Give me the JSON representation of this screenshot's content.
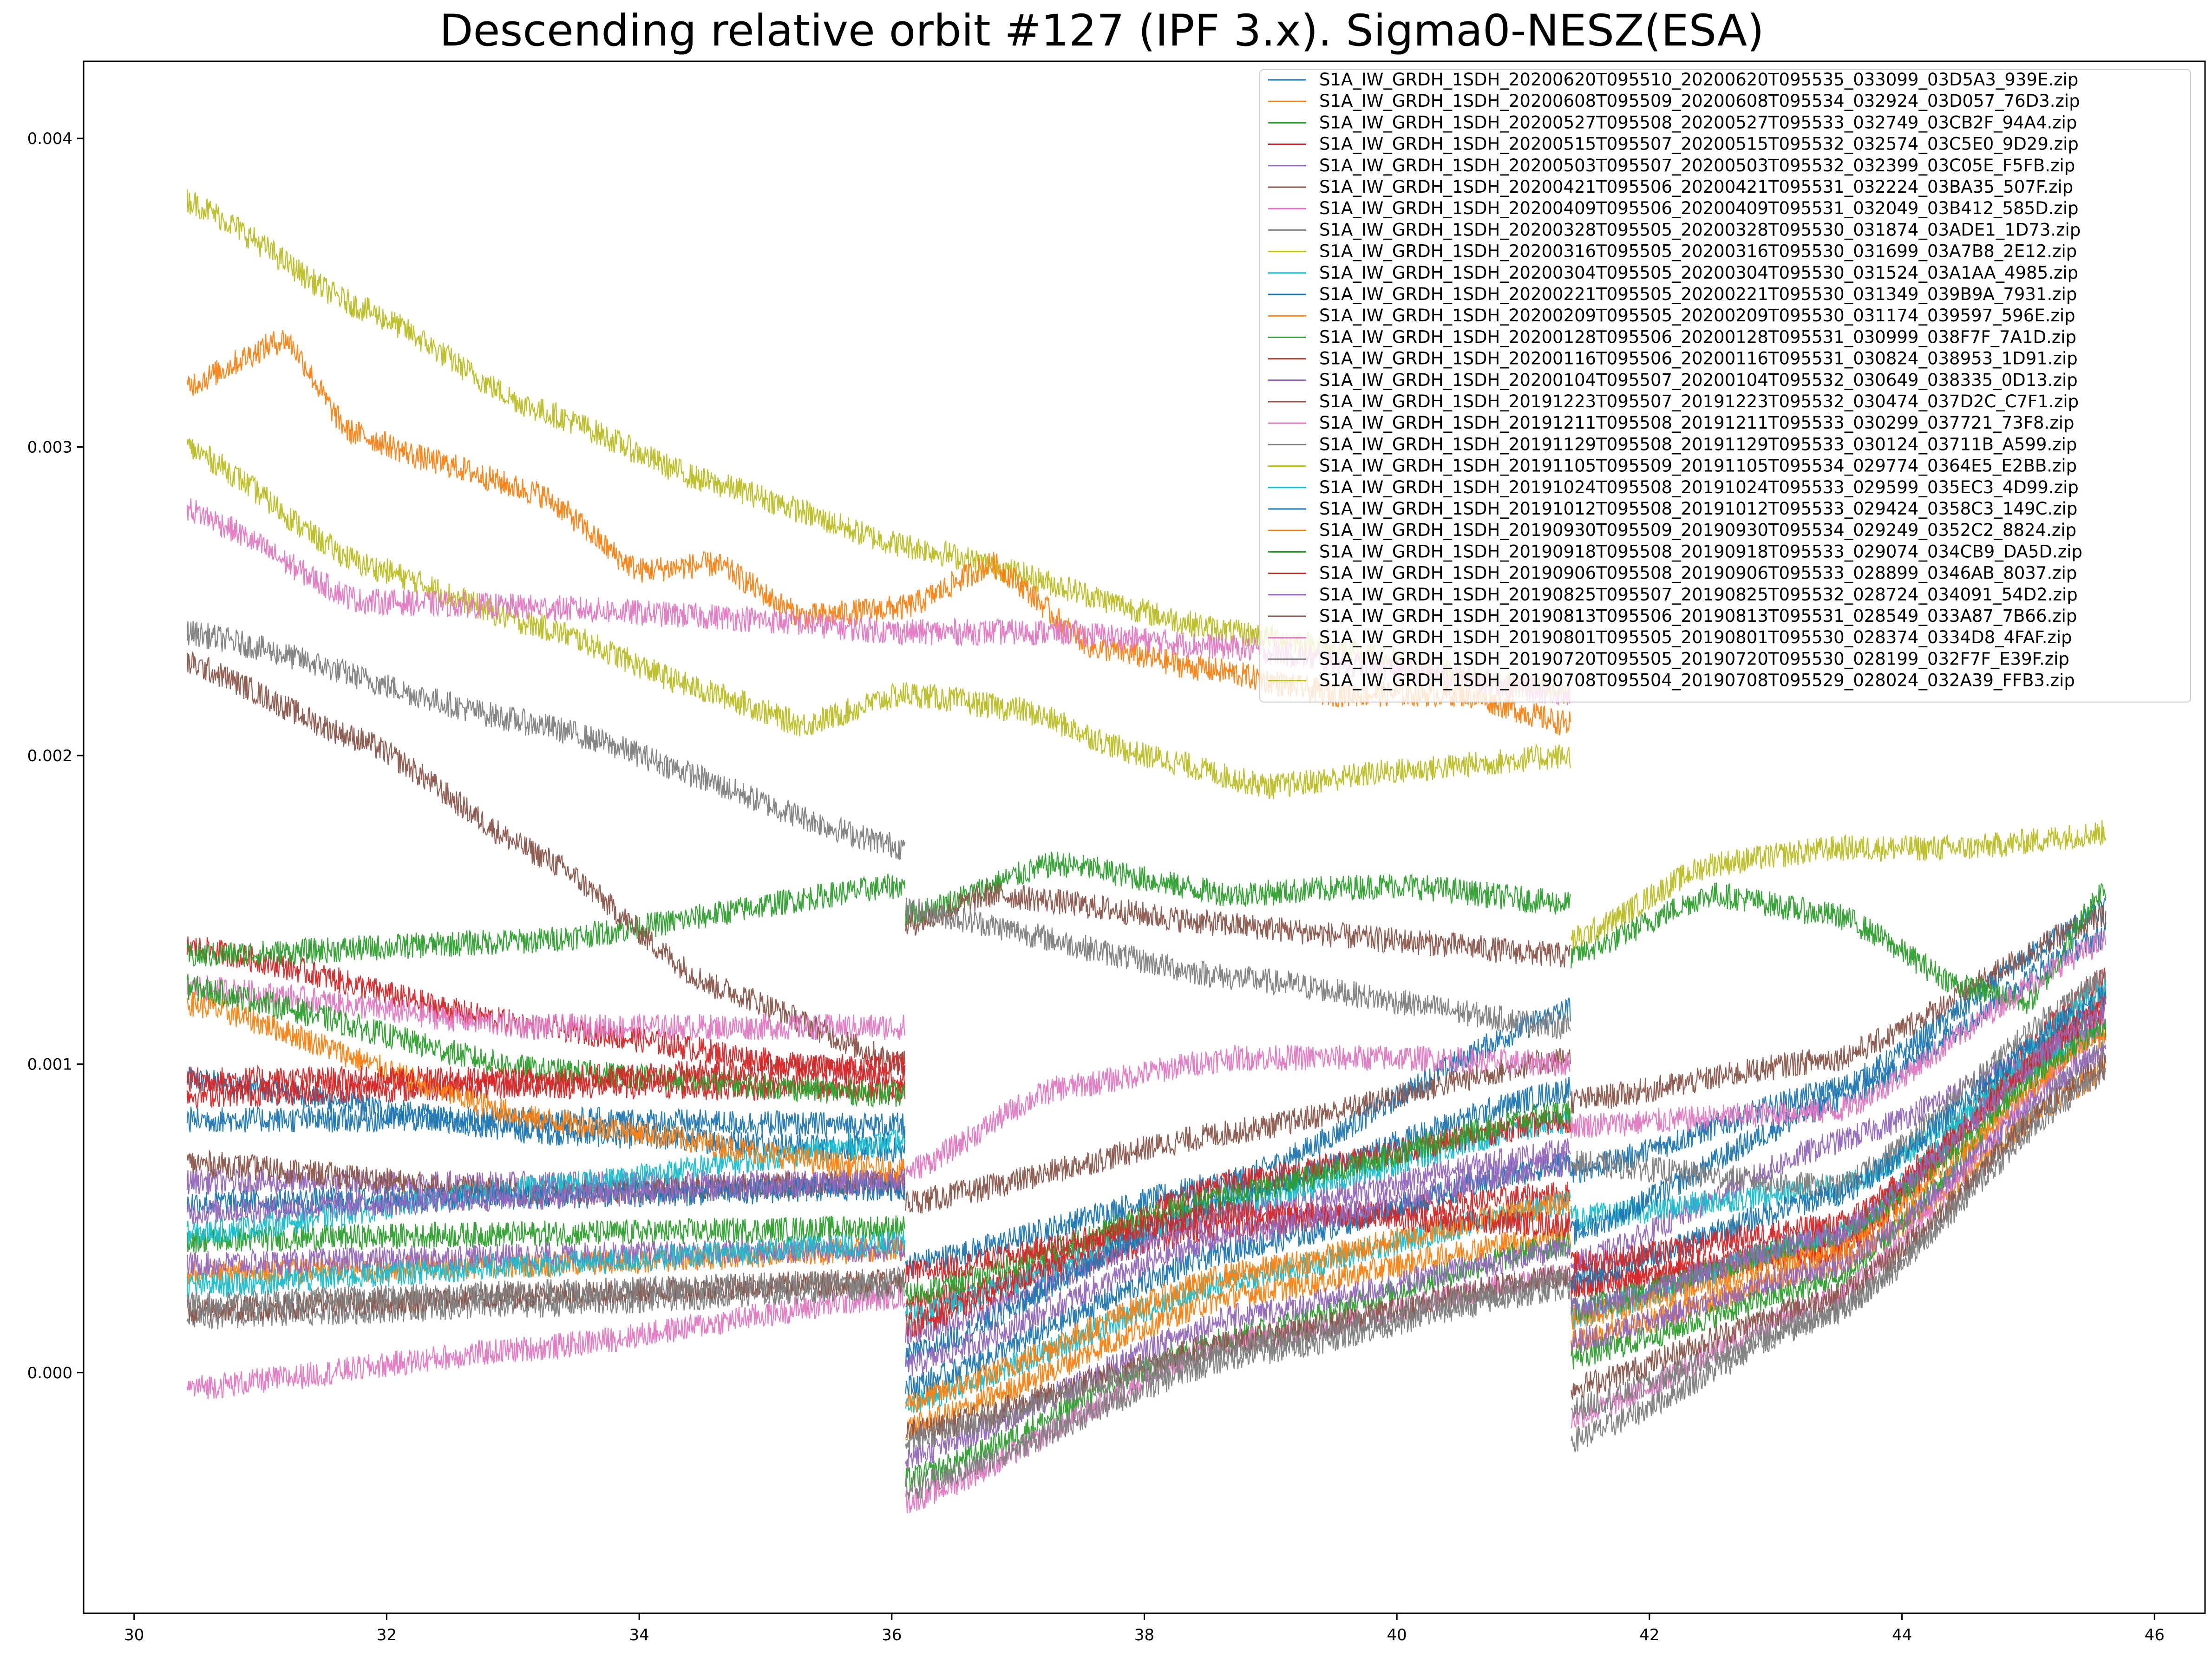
{
  "chart_data": {
    "type": "line",
    "title": "Descending relative orbit #127 (IPF 3.x). Sigma0-NESZ(ESA)",
    "xlabel": "",
    "ylabel": "",
    "xlim": [
      29.6,
      46.4
    ],
    "ylim": [
      -0.00078,
      0.00425
    ],
    "x_ticks": [
      30,
      32,
      34,
      36,
      38,
      40,
      42,
      44,
      46
    ],
    "x_tick_labels": [
      "30",
      "32",
      "34",
      "36",
      "38",
      "40",
      "42",
      "44",
      "46"
    ],
    "y_ticks": [
      0.0,
      0.001,
      0.002,
      0.003,
      0.004
    ],
    "y_tick_labels": [
      "0.000",
      "0.001",
      "0.002",
      "0.003",
      "0.004"
    ],
    "grid": false,
    "legend_position": "top-right",
    "subswath_x": [
      [
        30.42,
        36.11
      ],
      [
        36.11,
        41.38
      ],
      [
        41.38,
        45.62
      ]
    ],
    "series": [
      {
        "name": "S1A_IW_GRDH_1SDH_20200620T095510_20200620T095535_033099_03D5A3_939E.zip",
        "color": "#1f77b4",
        "x": [
          30.42,
          33.2,
          36.11,
          36.11,
          38.7,
          41.38,
          41.38,
          43.5,
          45.62
        ],
        "y": [
          0.00095,
          0.00078,
          0.00072,
          0.00035,
          0.00062,
          0.00118,
          0.00065,
          0.00092,
          0.0015
        ]
      },
      {
        "name": "S1A_IW_GRDH_1SDH_20200608T095509_20200608T095534_032924_03D057_76D3.zip",
        "color": "#ff7f0e",
        "x": [
          30.42,
          33.2,
          36.11,
          36.11,
          38.7,
          41.38,
          41.38,
          43.5,
          45.62
        ],
        "y": [
          0.00032,
          0.00035,
          0.0004,
          -0.00018,
          0.00025,
          0.00045,
          0.0001,
          0.00035,
          0.00098
        ]
      },
      {
        "name": "S1A_IW_GRDH_1SDH_20200527T095508_20200527T095533_032749_03CB2F_94A4.zip",
        "color": "#2ca02c",
        "x": [
          30.42,
          33.2,
          36.11,
          36.11,
          38.7,
          41.38,
          41.38,
          43.5,
          45.62
        ],
        "y": [
          0.00043,
          0.00045,
          0.00047,
          -0.00035,
          0.00012,
          0.00042,
          5e-05,
          0.0003,
          0.00118
        ]
      },
      {
        "name": "S1A_IW_GRDH_1SDH_20200515T095507_20200515T095532_032574_03C5E0_9D29.zip",
        "color": "#d62728",
        "x": [
          30.42,
          33.2,
          36.11,
          36.11,
          38.7,
          41.38,
          41.38,
          43.5,
          45.62
        ],
        "y": [
          0.00138,
          0.00112,
          0.00095,
          0.00022,
          0.00048,
          0.00058,
          0.00028,
          0.00042,
          0.00128
        ]
      },
      {
        "name": "S1A_IW_GRDH_1SDH_20200503T095507_20200503T095532_032399_03C05E_F5FB.zip",
        "color": "#9467bd",
        "x": [
          30.42,
          33.2,
          36.11,
          36.11,
          38.7,
          41.38,
          41.38,
          43.5,
          45.62
        ],
        "y": [
          0.00062,
          0.00061,
          0.00062,
          0.00012,
          0.00052,
          0.00072,
          0.00035,
          0.00075,
          0.00112
        ]
      },
      {
        "name": "S1A_IW_GRDH_1SDH_20200421T095506_20200421T095531_032224_03BA35_507F.zip",
        "color": "#8c564b",
        "x": [
          30.42,
          33.2,
          36.11,
          36.11,
          38.7,
          41.38,
          41.38,
          43.5,
          45.62
        ],
        "y": [
          0.00068,
          0.00058,
          0.00062,
          0.00055,
          0.00078,
          0.00102,
          0.00088,
          0.00102,
          0.00148
        ]
      },
      {
        "name": "S1A_IW_GRDH_1SDH_20200409T095506_20200409T095531_032049_03B412_585D.zip",
        "color": "#e377c2",
        "x": [
          30.42,
          33.2,
          36.11,
          36.11,
          38.7,
          41.38,
          41.38,
          43.5,
          45.62
        ],
        "y": [
          -5e-05,
          8e-05,
          0.00025,
          -0.00042,
          0.0001,
          0.00032,
          -0.00015,
          0.00025,
          0.00112
        ]
      },
      {
        "name": "S1A_IW_GRDH_1SDH_20200328T095505_20200328T095530_031874_03ADE1_1D73.zip",
        "color": "#7f7f7f",
        "x": [
          30.42,
          33.2,
          36.11,
          36.11,
          38.7,
          41.38,
          41.38,
          43.5,
          45.62
        ],
        "y": [
          0.00018,
          0.00022,
          0.00028,
          -0.00038,
          5e-05,
          0.00028,
          -0.00022,
          0.0002,
          0.00105
        ]
      },
      {
        "name": "S1A_IW_GRDH_1SDH_20200316T095505_20200316T095530_031699_03A7B8_2E12.zip",
        "color": "#bcbd22",
        "x": [
          30.42,
          31.8,
          33.2,
          34.6,
          36.11,
          38.7,
          41.38
        ],
        "y": [
          0.0038,
          0.00345,
          0.00312,
          0.00288,
          0.00268,
          0.0024,
          0.0022
        ]
      },
      {
        "name": "S1A_IW_GRDH_1SDH_20200304T095505_20200304T095530_031524_03A1AA_4985.zip",
        "color": "#17becf",
        "x": [
          30.42,
          33.2,
          36.11,
          36.11,
          38.7,
          41.38,
          41.38,
          43.5,
          45.62
        ],
        "y": [
          0.00045,
          0.0006,
          0.00075,
          0.00018,
          0.00055,
          0.00082,
          0.0005,
          0.0006,
          0.00112
        ]
      },
      {
        "name": "S1A_IW_GRDH_1SDH_20200221T095505_20200221T095530_031349_039B9A_7931.zip",
        "color": "#1f77b4",
        "x": [
          30.42,
          33.2,
          36.11,
          36.11,
          38.7,
          41.38,
          41.38,
          43.5,
          45.62
        ],
        "y": [
          0.00082,
          0.00082,
          0.0008,
          5e-05,
          0.00058,
          0.00092,
          0.00045,
          0.00088,
          0.00142
        ]
      },
      {
        "name": "S1A_IW_GRDH_1SDH_20200209T095505_20200209T095530_031174_039597_596E.zip",
        "color": "#ff7f0e",
        "x": [
          30.42,
          31.2,
          31.7,
          32.4,
          33.2,
          34.0,
          34.6,
          35.3,
          36.11,
          36.8,
          37.6,
          38.5,
          39.5,
          40.5,
          41.38
        ],
        "y": [
          0.0032,
          0.00335,
          0.00305,
          0.00295,
          0.00285,
          0.0026,
          0.00262,
          0.00245,
          0.00248,
          0.00262,
          0.00235,
          0.00228,
          0.0022,
          0.0022,
          0.0021
        ]
      },
      {
        "name": "S1A_IW_GRDH_1SDH_20200128T095506_20200128T095531_030999_038F7F_7A1D.zip",
        "color": "#2ca02c",
        "x": [
          30.42,
          33.2,
          36.11,
          36.11,
          37.3,
          38.7,
          40.0,
          41.38,
          41.38,
          42.5,
          43.5,
          44.5,
          45.0,
          45.62
        ],
        "y": [
          0.00135,
          0.0014,
          0.00158,
          0.00148,
          0.00165,
          0.00155,
          0.00158,
          0.00152,
          0.00135,
          0.00155,
          0.00148,
          0.00125,
          0.0012,
          0.00158
        ]
      },
      {
        "name": "S1A_IW_GRDH_1SDH_20200116T095506_20200116T095531_030824_038953_1D91.zip",
        "color": "#d62728",
        "x": [
          30.42,
          33.2,
          36.11,
          36.11,
          38.7,
          41.38,
          41.38,
          43.5,
          45.62
        ],
        "y": [
          0.0009,
          0.00093,
          0.00092,
          0.00015,
          0.00062,
          0.00082,
          0.00028,
          0.0004,
          0.00122
        ]
      },
      {
        "name": "S1A_IW_GRDH_1SDH_20200104T095507_20200104T095532_030649_038335_0D13.zip",
        "color": "#9467bd",
        "x": [
          30.42,
          33.2,
          36.11,
          36.11,
          38.7,
          41.38,
          41.38,
          43.5,
          45.62
        ],
        "y": [
          0.00035,
          0.00038,
          0.0004,
          -0.00028,
          0.00018,
          0.0004,
          0.0001,
          0.00035,
          0.00105
        ]
      },
      {
        "name": "S1A_IW_GRDH_1SDH_20191223T095507_20191223T095532_030474_037D2C_C7F1.zip",
        "color": "#8c564b",
        "x": [
          30.42,
          31.8,
          33.2,
          34.6,
          36.11,
          36.11,
          36.8,
          38.7,
          40.0,
          41.38
        ],
        "y": [
          0.0023,
          0.00205,
          0.00168,
          0.00125,
          0.001,
          0.00145,
          0.00155,
          0.00145,
          0.0014,
          0.00135
        ]
      },
      {
        "name": "S1A_IW_GRDH_1SDH_20191211T095508_20191211T095533_030299_037721_73F8.zip",
        "color": "#e377c2",
        "x": [
          30.42,
          33.2,
          36.11,
          36.11,
          37.3,
          38.7,
          40.0,
          41.38,
          41.38,
          43.5,
          45.62
        ],
        "y": [
          0.00125,
          0.00112,
          0.00112,
          0.00065,
          0.00092,
          0.00102,
          0.00102,
          0.001,
          0.0008,
          0.00085,
          0.0014
        ]
      },
      {
        "name": "S1A_IW_GRDH_1SDH_20191129T095508_20191129T095533_030124_03711B_A599.zip",
        "color": "#7f7f7f",
        "x": [
          30.42,
          33.2,
          36.11,
          36.11,
          38.7,
          41.38,
          41.38,
          43.5,
          45.62
        ],
        "y": [
          0.0024,
          0.0021,
          0.0017,
          0.0015,
          0.00128,
          0.00112,
          0.00068,
          0.0006,
          0.00128
        ]
      },
      {
        "name": "S1A_IW_GRDH_1SDH_20191105T095509_20191105T095534_029774_0364E5_E2BB.zip",
        "color": "#bcbd22",
        "x": [
          30.42,
          31.8,
          33.2,
          34.6,
          35.3,
          36.11,
          37.0,
          38.0,
          39.0,
          40.0,
          41.38
        ],
        "y": [
          0.003,
          0.00262,
          0.00242,
          0.0022,
          0.0021,
          0.0022,
          0.00215,
          0.002,
          0.0019,
          0.00195,
          0.002
        ]
      },
      {
        "name": "S1A_IW_GRDH_1SDH_20191024T095508_20191024T095533_029599_035EC3_4D99.zip",
        "color": "#17becf",
        "x": [
          30.42,
          33.2,
          36.11,
          36.11,
          38.7,
          41.38,
          41.38,
          43.5,
          45.62
        ],
        "y": [
          0.00028,
          0.00035,
          0.00042,
          -0.0001,
          0.0003,
          0.00055,
          0.00018,
          0.00045,
          0.00125
        ]
      },
      {
        "name": "S1A_IW_GRDH_1SDH_20191012T095508_20191012T095533_029424_0358C3_149C.zip",
        "color": "#1f77b4",
        "x": [
          30.42,
          33.2,
          36.11,
          36.11,
          38.7,
          41.38,
          41.38,
          43.5,
          45.62
        ],
        "y": [
          0.00055,
          0.00057,
          0.0006,
          -5e-05,
          0.0004,
          0.00068,
          0.0003,
          0.00058,
          0.00122
        ]
      },
      {
        "name": "S1A_IW_GRDH_1SDH_20190930T095509_20190930T095534_029249_0352C2_8824.zip",
        "color": "#ff7f0e",
        "x": [
          30.42,
          33.2,
          36.11,
          36.11,
          38.7,
          41.38,
          41.38,
          43.5,
          45.62
        ],
        "y": [
          0.0012,
          0.00082,
          0.00065,
          -0.0001,
          0.00032,
          0.00055,
          0.00018,
          0.0004,
          0.0011
        ]
      },
      {
        "name": "S1A_IW_GRDH_1SDH_20190918T095508_20190918T095533_029074_034CB9_DA5D.zip",
        "color": "#2ca02c",
        "x": [
          30.42,
          33.2,
          36.11,
          36.11,
          38.7,
          41.38,
          41.38,
          43.5,
          45.62
        ],
        "y": [
          0.00125,
          0.00098,
          0.0009,
          0.00025,
          0.00058,
          0.00085,
          0.0002,
          0.00045,
          0.00112
        ]
      },
      {
        "name": "S1A_IW_GRDH_1SDH_20190906T095508_20190906T095533_028899_0346AB_8037.zip",
        "color": "#d62728",
        "x": [
          30.42,
          33.2,
          36.11,
          36.11,
          38.7,
          41.38,
          41.38,
          43.5,
          45.62
        ],
        "y": [
          0.00095,
          0.00095,
          0.001,
          0.00032,
          0.00052,
          0.00048,
          0.00035,
          0.00048,
          0.00118
        ]
      },
      {
        "name": "S1A_IW_GRDH_1SDH_20190825T095507_20190825T095532_028724_034091_54D2.zip",
        "color": "#9467bd",
        "x": [
          30.42,
          33.2,
          36.11,
          36.11,
          38.7,
          41.38,
          41.38,
          43.5,
          45.62
        ],
        "y": [
          0.00052,
          0.00057,
          0.00062,
          2e-05,
          0.00045,
          0.00068,
          0.0002,
          0.00045,
          0.00118
        ]
      },
      {
        "name": "S1A_IW_GRDH_1SDH_20190813T095506_20190813T095531_028549_033A87_7B66.zip",
        "color": "#8c564b",
        "x": [
          30.42,
          33.2,
          36.11,
          36.11,
          38.7,
          41.38,
          41.38,
          43.5,
          45.62
        ],
        "y": [
          0.0002,
          0.00025,
          0.0003,
          -0.0002,
          0.0001,
          0.00032,
          -5e-05,
          0.00025,
          0.001
        ]
      },
      {
        "name": "S1A_IW_GRDH_1SDH_20190801T095505_20190801T095530_028374_0334D8_4FAF.zip",
        "color": "#e377c2",
        "x": [
          30.42,
          31.8,
          33.2,
          34.6,
          36.11,
          37.3,
          38.7,
          40.0,
          41.38
        ],
        "y": [
          0.0028,
          0.0025,
          0.00248,
          0.00245,
          0.0024,
          0.0024,
          0.00235,
          0.00228,
          0.0022
        ]
      },
      {
        "name": "S1A_IW_GRDH_1SDH_20190720T095505_20190720T095530_028199_032F7F_E39F.zip",
        "color": "#7f7f7f",
        "x": [
          30.42,
          33.2,
          36.11,
          36.11,
          38.7,
          41.38,
          41.38,
          43.5,
          45.62
        ],
        "y": [
          0.00022,
          0.00026,
          0.0003,
          -0.00022,
          8e-05,
          0.0003,
          -0.00012,
          0.0002,
          0.00098
        ]
      },
      {
        "name": "S1A_IW_GRDH_1SDH_20190708T095504_20190708T095529_028024_032A39_FFB3.zip",
        "color": "#bcbd22",
        "x": [
          41.38,
          42.5,
          43.5,
          44.5,
          45.62
        ],
        "y": [
          0.0014,
          0.00165,
          0.0017,
          0.0017,
          0.00175
        ]
      }
    ]
  }
}
